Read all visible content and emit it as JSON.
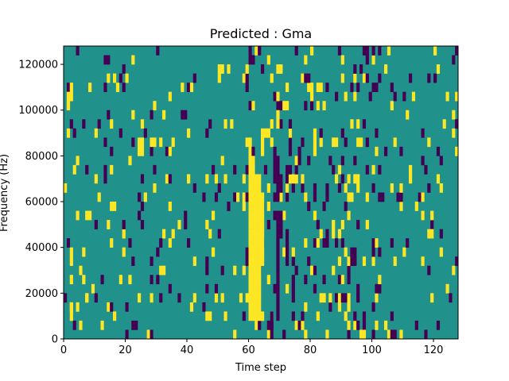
{
  "chart_data": {
    "type": "heatmap",
    "title": "Predicted : Gma",
    "xlabel": "Time step",
    "ylabel": "Frequency (Hz)",
    "xlim": [
      0,
      128
    ],
    "ylim": [
      0,
      128000
    ],
    "xticks": [
      0,
      20,
      40,
      60,
      80,
      100,
      120
    ],
    "yticks": [
      0,
      20000,
      40000,
      60000,
      80000,
      100000,
      120000
    ],
    "ytick_labels": [
      "0",
      "20000",
      "40000",
      "60000",
      "80000",
      "100000",
      "120000"
    ],
    "grid": false,
    "legend": "none",
    "colormap": "viridis",
    "value_colors": {
      "-1": "#440154",
      "0": "#21918c",
      "1": "#fde725"
    },
    "background_value": 0,
    "grid_shape": {
      "time_steps": 128,
      "frequency_bins": 32,
      "bin_hz": 4000
    },
    "cells": [
      {
        "t": 60,
        "f0": 2,
        "f1": 19,
        "v": 1
      },
      {
        "t": 61,
        "f0": 2,
        "f1": 19,
        "v": 1
      },
      {
        "t": 62,
        "f0": 2,
        "f1": 17,
        "v": 1
      },
      {
        "t": 63,
        "f0": 2,
        "f1": 16,
        "v": 1
      },
      {
        "t": 64,
        "f0": 8,
        "f1": 15,
        "v": 1
      },
      {
        "t": 64,
        "f0": 20,
        "f1": 22,
        "v": 1
      },
      {
        "t": 69,
        "f0": 23,
        "f1": 24,
        "v": 1
      },
      {
        "t": 69,
        "f0": 3,
        "f1": 13,
        "v": -1
      },
      {
        "t": 69,
        "f0": 15,
        "f1": 19,
        "v": -1
      },
      {
        "t": 68,
        "f0": 17,
        "f1": 20,
        "v": -1
      },
      {
        "t": 67,
        "f0": 0,
        "f1": 2,
        "v": -1
      },
      {
        "t": 70,
        "f0": 11,
        "f1": 13,
        "v": -1
      },
      {
        "t": 72,
        "f0": 8,
        "f1": 11,
        "v": -1
      },
      {
        "t": 74,
        "f0": 4,
        "f1": 6,
        "v": -1
      },
      {
        "t": 1,
        "f0": 25,
        "f1": 26,
        "v": 1
      },
      {
        "t": 2,
        "f0": 27,
        "f1": 26,
        "v": 1
      },
      {
        "t": 2,
        "f0": 8,
        "f1": 9,
        "v": 1
      },
      {
        "t": 2,
        "f0": 2,
        "f1": 3,
        "v": 1
      },
      {
        "t": 4,
        "f0": 31,
        "f1": 31,
        "v": -1
      },
      {
        "t": 7,
        "f0": 4,
        "f1": 4,
        "v": 1
      },
      {
        "t": 24,
        "f0": 20,
        "f1": 20,
        "v": 1
      },
      {
        "t": 24,
        "f0": 21,
        "f1": 21,
        "v": 1
      },
      {
        "t": 25,
        "f0": 20,
        "f1": 21,
        "v": 1
      },
      {
        "t": 96,
        "f0": 0,
        "f1": 0,
        "v": 1
      },
      {
        "t": 97,
        "f0": 0,
        "f1": 0,
        "v": 1
      },
      {
        "t": 118,
        "f0": 11,
        "f1": 11,
        "v": 1
      },
      {
        "t": 119,
        "f0": 11,
        "f1": 11,
        "v": 1
      },
      {
        "t": 119,
        "f0": 4,
        "f1": 4,
        "v": 1
      },
      {
        "t": 38,
        "f0": 24,
        "f1": 24,
        "v": -1
      },
      {
        "t": 39,
        "f0": 24,
        "f1": 24,
        "v": -1
      },
      {
        "t": 102,
        "f0": 15,
        "f1": 15,
        "v": -1
      },
      {
        "t": 103,
        "f0": 15,
        "f1": 15,
        "v": -1
      },
      {
        "t": 100,
        "f0": 27,
        "f1": 27,
        "v": -1
      },
      {
        "t": 101,
        "f0": 27,
        "f1": 27,
        "v": -1
      },
      {
        "t": 93,
        "f0": 8,
        "f1": 9,
        "v": -1
      },
      {
        "t": 94,
        "f0": 8,
        "f1": 9,
        "v": -1
      }
    ],
    "scatter_seed": 20240
  }
}
